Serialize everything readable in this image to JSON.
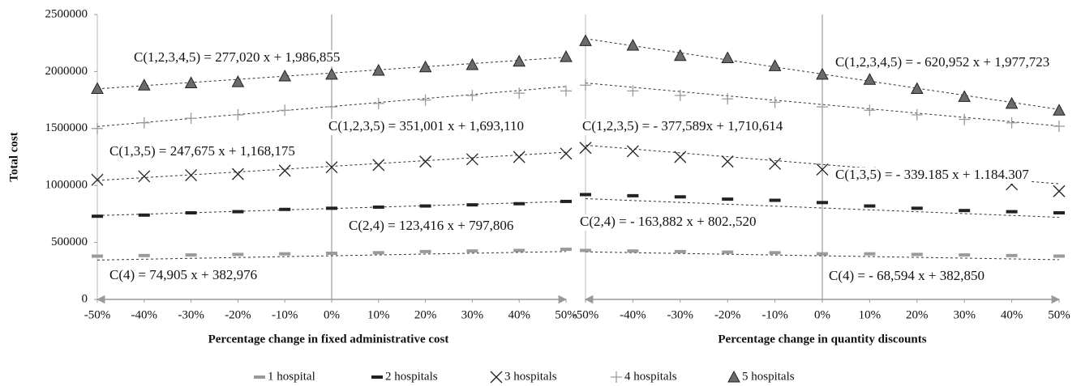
{
  "chart_data": [
    {
      "type": "scatter",
      "y_label": "Total cost",
      "x_label": "Percentage change in fixed administrative cost",
      "x": [
        -0.5,
        -0.4,
        -0.3,
        -0.2,
        -0.1,
        0,
        0.1,
        0.2,
        0.3,
        0.4,
        0.5
      ],
      "xlim": [
        -0.5,
        0.5
      ],
      "xticks": [
        {
          "value": -0.5,
          "label": "-50%"
        },
        {
          "value": -0.4,
          "label": "-40%"
        },
        {
          "value": -0.3,
          "label": "-30%"
        },
        {
          "value": -0.2,
          "label": "-20%"
        },
        {
          "value": -0.1,
          "label": "-10%"
        },
        {
          "value": 0,
          "label": "0%"
        },
        {
          "value": 0.1,
          "label": "10%"
        },
        {
          "value": 0.2,
          "label": "20%"
        },
        {
          "value": 0.3,
          "label": "30%"
        },
        {
          "value": 0.4,
          "label": "40%"
        },
        {
          "value": 0.5,
          "label": "50%"
        }
      ],
      "ylim": [
        0,
        2500000
      ],
      "yticks": [
        0,
        500000,
        1000000,
        1500000,
        2000000,
        2500000
      ],
      "legend": "bottom",
      "series": [
        {
          "name": "1 hospital",
          "marker": "dash",
          "color": "#9a9a9a",
          "values": [
            380000,
            385000,
            390000,
            395000,
            400000,
            405000,
            410000,
            420000,
            425000,
            430000,
            440000
          ],
          "equation": "C(4) = 74,905 x + 382,976",
          "slope": 74905,
          "intercept": 382976
        },
        {
          "name": "2 hospitals",
          "marker": "dash",
          "color": "#222222",
          "values": [
            730000,
            740000,
            760000,
            770000,
            790000,
            800000,
            810000,
            820000,
            830000,
            840000,
            860000
          ],
          "equation": "C(2,4) = 123,416 x + 797,806",
          "slope": 123416,
          "intercept": 797806
        },
        {
          "name": "3 hospitals",
          "marker": "x",
          "color": "#222222",
          "values": [
            1050000,
            1080000,
            1090000,
            1100000,
            1130000,
            1160000,
            1180000,
            1210000,
            1230000,
            1250000,
            1280000
          ],
          "equation": "C(1,3,5) = 247,675 x + 1,168,175",
          "slope": 247675,
          "intercept": 1168175
        },
        {
          "name": "4 hospitals",
          "marker": "plus",
          "color": "#9a9a9a",
          "values": [
            1500000,
            1550000,
            1590000,
            1620000,
            1660000,
            1690000,
            1720000,
            1750000,
            1790000,
            1810000,
            1830000
          ],
          "equation": "C(1,2,3,5) = 351,001 x + 1,693,110",
          "slope": 351001,
          "intercept": 1693110
        },
        {
          "name": "5 hospitals",
          "marker": "triangle",
          "color": "#6b6b6b",
          "values": [
            1850000,
            1880000,
            1900000,
            1910000,
            1960000,
            1975000,
            2010000,
            2040000,
            2060000,
            2090000,
            2130000
          ],
          "equation": "C(1,2,3,4,5) = 277,020 x + 1,986,855",
          "slope": 277020,
          "intercept": 1986855
        }
      ]
    },
    {
      "type": "scatter",
      "x_label": "Percentage change in quantity discounts",
      "x": [
        -0.5,
        -0.4,
        -0.3,
        -0.2,
        -0.1,
        0,
        0.1,
        0.2,
        0.3,
        0.4,
        0.5
      ],
      "xlim": [
        -0.5,
        0.5
      ],
      "xticks": [
        {
          "value": -0.5,
          "label": "-50%"
        },
        {
          "value": -0.4,
          "label": "-40%"
        },
        {
          "value": -0.3,
          "label": "-30%"
        },
        {
          "value": -0.2,
          "label": "-20%"
        },
        {
          "value": -0.1,
          "label": "-10%"
        },
        {
          "value": 0,
          "label": "0%"
        },
        {
          "value": 0.1,
          "label": "10%"
        },
        {
          "value": 0.2,
          "label": "20%"
        },
        {
          "value": 0.3,
          "label": "30%"
        },
        {
          "value": 0.4,
          "label": "40%"
        },
        {
          "value": 0.5,
          "label": "50%"
        }
      ],
      "ylim": [
        0,
        2500000
      ],
      "series": [
        {
          "marker": "dash",
          "color": "#9a9a9a",
          "values": [
            430000,
            425000,
            420000,
            415000,
            410000,
            400000,
            400000,
            395000,
            390000,
            385000,
            380000
          ],
          "equation": "C(4) = - 68,594 x + 382,850",
          "slope": -68594,
          "intercept": 382850
        },
        {
          "marker": "dash",
          "color": "#222222",
          "values": [
            920000,
            910000,
            900000,
            880000,
            870000,
            850000,
            820000,
            800000,
            780000,
            770000,
            760000
          ],
          "equation": "C(2,4) = - 163,882 x + 802.,520",
          "slope": -163882,
          "intercept": 802520
        },
        {
          "marker": "x",
          "color": "#222222",
          "values": [
            1330000,
            1300000,
            1250000,
            1210000,
            1190000,
            1140000,
            1110000,
            1100000,
            1080000,
            1010000,
            950000
          ],
          "equation": "C(1,3,5) = - 339.185 x + 1.184.307",
          "slope": -339185,
          "intercept": 1184307
        },
        {
          "marker": "plus",
          "color": "#9a9a9a",
          "values": [
            1880000,
            1830000,
            1790000,
            1760000,
            1730000,
            1690000,
            1660000,
            1620000,
            1580000,
            1550000,
            1520000
          ],
          "equation": "C(1,2,3,5) = - 377,589x + 1,710,614",
          "slope": -377589,
          "intercept": 1710614
        },
        {
          "marker": "triangle",
          "color": "#6b6b6b",
          "values": [
            2270000,
            2230000,
            2140000,
            2120000,
            2050000,
            1975000,
            1930000,
            1850000,
            1780000,
            1720000,
            1660000
          ],
          "equation": "C(1,2,3,4,5) = - 620,952 x + 1,977,723",
          "slope": -620952,
          "intercept": 1977723
        }
      ]
    }
  ]
}
